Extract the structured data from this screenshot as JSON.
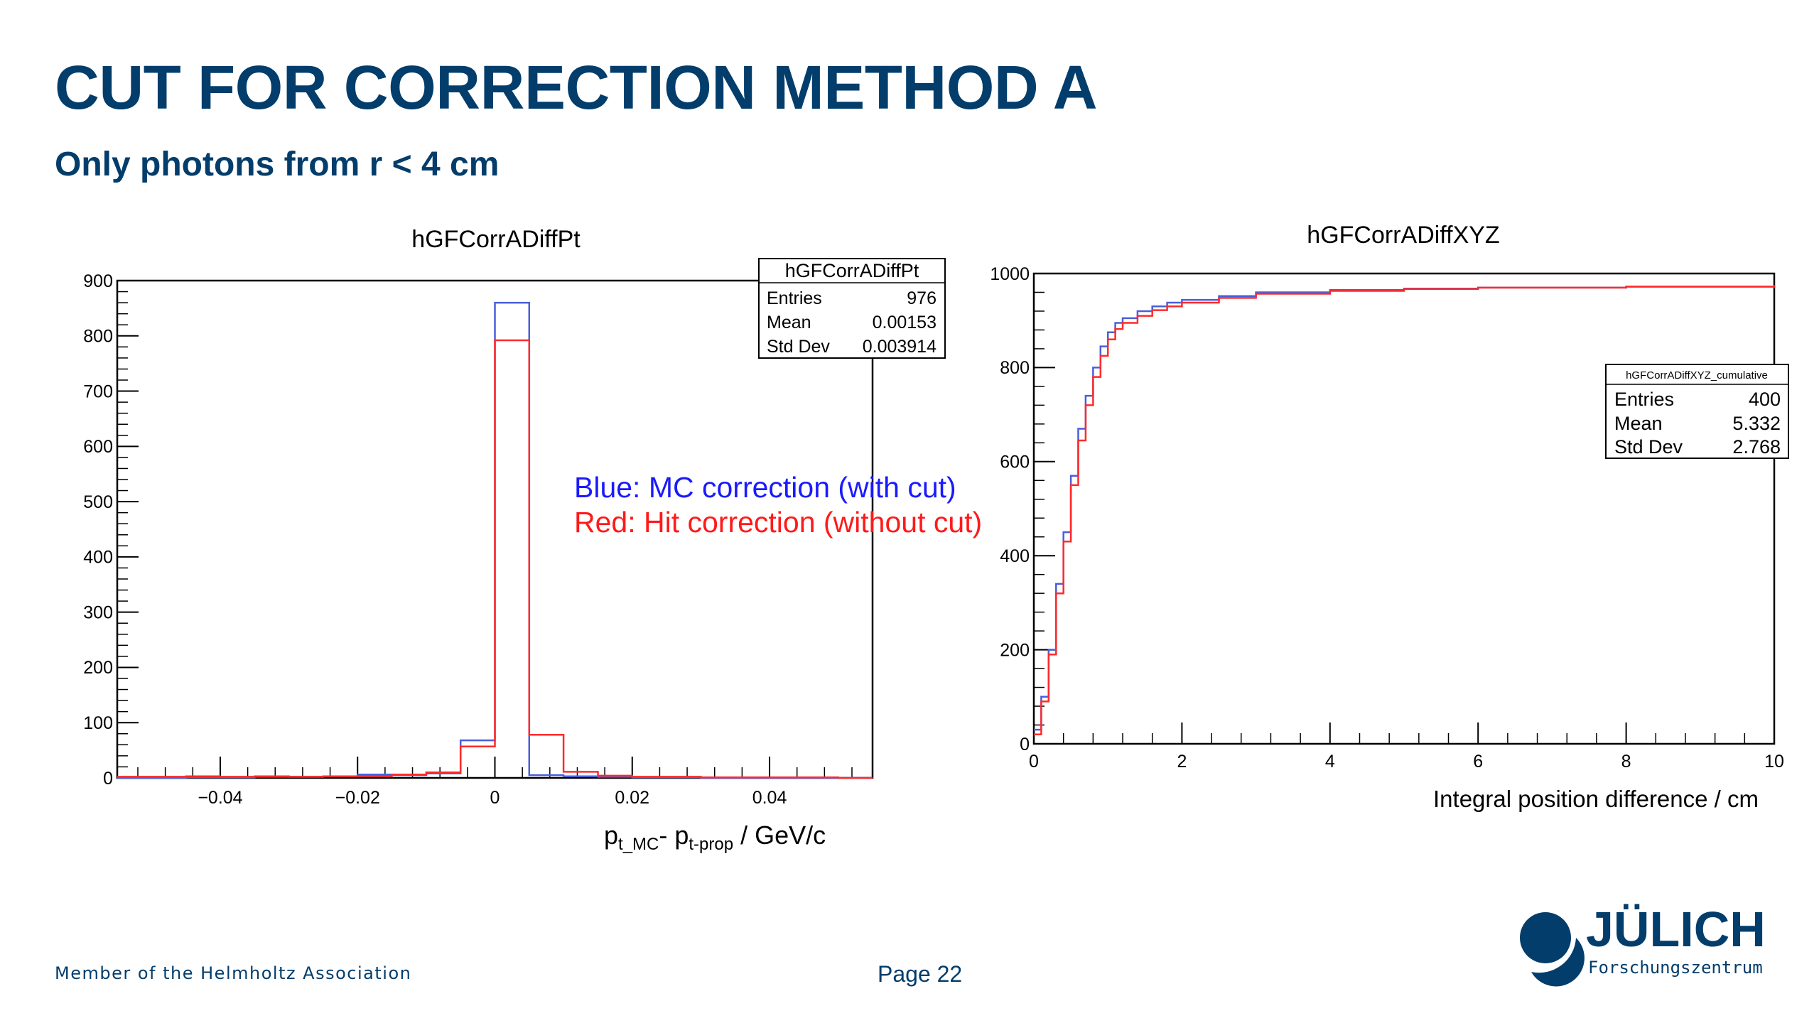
{
  "slide": {
    "title": "CUT FOR CORRECTION METHOD A",
    "subtitle": "Only photons from r < 4 cm",
    "footer_left": "Member of the Helmholtz Association",
    "page_label": "Page 22",
    "logo_text": "JÜLICH",
    "logo_subtext": "Forschungszentrum",
    "brand_color": "#023d6b"
  },
  "legend_annotation": {
    "blue_label": "Blue: MC correction (with cut)",
    "red_label": "Red: Hit correction (without cut)",
    "blue_color": "#1a1aff",
    "red_color": "#ff1a1a"
  },
  "chart_data": [
    {
      "type": "histogram",
      "title": "hGFCorrADiffPt",
      "xlabel": {
        "base1": "p",
        "sub1": "t_MC",
        "mid": "- p",
        "sub2": "t-prop",
        "end": " / GeV/c"
      },
      "ylabel": "",
      "xlim": [
        -0.055,
        0.055
      ],
      "ylim": [
        0,
        900
      ],
      "x_ticks": [
        -0.04,
        -0.02,
        0,
        0.02,
        0.04
      ],
      "x_tick_labels": [
        "−0.04",
        "−0.02",
        "0",
        "0.02",
        "0.04"
      ],
      "y_ticks": [
        0,
        100,
        200,
        300,
        400,
        500,
        600,
        700,
        800,
        900
      ],
      "y_tick_labels": [
        "0",
        "100",
        "200",
        "300",
        "400",
        "500",
        "600",
        "700",
        "800",
        "900"
      ],
      "bin_edges": [
        -0.055,
        -0.05,
        -0.045,
        -0.04,
        -0.035,
        -0.03,
        -0.025,
        -0.02,
        -0.015,
        -0.01,
        -0.005,
        0,
        0.005,
        0.01,
        0.015,
        0.02,
        0.025,
        0.03,
        0.035,
        0.04,
        0.045,
        0.05,
        0.055
      ],
      "series": [
        {
          "color": "#4a5fd9",
          "values": [
            0,
            0,
            1,
            1,
            2,
            2,
            3,
            6,
            5,
            8,
            68,
            860,
            5,
            3,
            2,
            1,
            1,
            0,
            0,
            0,
            0,
            0
          ]
        },
        {
          "color": "#ff2a2a",
          "values": [
            2,
            2,
            3,
            2,
            3,
            2,
            3,
            3,
            6,
            10,
            57,
            792,
            78,
            11,
            4,
            2,
            2,
            1,
            1,
            1,
            1,
            0
          ]
        }
      ],
      "stats": {
        "title": "hGFCorrADiffPt",
        "rows": [
          [
            "Entries",
            "976"
          ],
          [
            "Mean",
            "0.00153"
          ],
          [
            "Std Dev",
            "0.003914"
          ]
        ]
      }
    },
    {
      "type": "histogram",
      "title": "hGFCorrADiffXYZ",
      "xlabel": "Integral position difference / cm",
      "ylabel": "",
      "xlim": [
        0,
        10
      ],
      "ylim": [
        0,
        1000
      ],
      "x_ticks": [
        0,
        2,
        4,
        6,
        8,
        10
      ],
      "x_tick_labels": [
        "0",
        "2",
        "4",
        "6",
        "8",
        "10"
      ],
      "y_ticks": [
        0,
        200,
        400,
        600,
        800,
        1000
      ],
      "y_tick_labels": [
        "0",
        "200",
        "400",
        "600",
        "800",
        "1000"
      ],
      "series": [
        {
          "color": "#4a5fd9",
          "x": [
            0,
            0.1,
            0.2,
            0.3,
            0.4,
            0.5,
            0.6,
            0.7,
            0.8,
            0.9,
            1.0,
            1.1,
            1.2,
            1.4,
            1.6,
            1.8,
            2.0,
            2.5,
            3.0,
            4.0,
            5.0,
            6.0,
            8.0,
            10.0
          ],
          "values": [
            30,
            100,
            200,
            340,
            450,
            570,
            670,
            740,
            800,
            845,
            875,
            895,
            905,
            920,
            930,
            938,
            944,
            952,
            960,
            965,
            968,
            970,
            972,
            975
          ]
        },
        {
          "color": "#ff2a2a",
          "x": [
            0,
            0.1,
            0.2,
            0.3,
            0.4,
            0.5,
            0.6,
            0.7,
            0.8,
            0.9,
            1.0,
            1.1,
            1.2,
            1.4,
            1.6,
            1.8,
            2.0,
            2.5,
            3.0,
            4.0,
            5.0,
            6.0,
            8.0,
            10.0
          ],
          "values": [
            20,
            90,
            190,
            320,
            430,
            550,
            645,
            720,
            780,
            825,
            860,
            882,
            895,
            910,
            922,
            930,
            938,
            948,
            957,
            963,
            967,
            970,
            972,
            975
          ]
        }
      ],
      "stats": {
        "title": "hGFCorrADiffXYZ_cumulative",
        "rows": [
          [
            "Entries",
            "400"
          ],
          [
            "Mean",
            "5.332"
          ],
          [
            "Std Dev",
            "2.768"
          ]
        ]
      }
    }
  ]
}
